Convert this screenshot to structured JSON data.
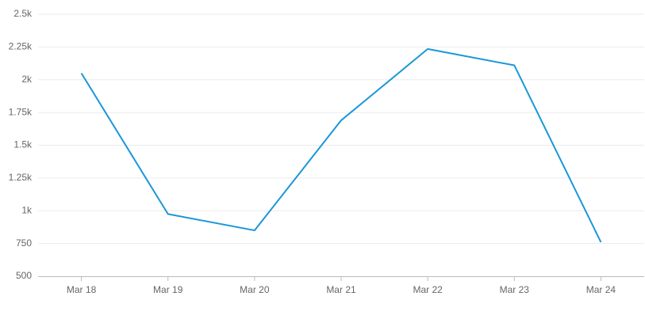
{
  "chart_data": {
    "type": "line",
    "categories": [
      "Mar 18",
      "Mar 19",
      "Mar 20",
      "Mar 21",
      "Mar 22",
      "Mar 23",
      "Mar 24"
    ],
    "series": [
      {
        "color": "#1b97d8",
        "values": [
          2050,
          975,
          850,
          1690,
          2235,
          2110,
          760
        ]
      }
    ],
    "ylim": [
      500,
      2500
    ],
    "yticks": [
      500,
      750,
      {
        "value": 1000,
        "label": "1k"
      },
      {
        "value": 1250,
        "label": "1.25k"
      },
      {
        "value": 1500,
        "label": "1.5k"
      },
      {
        "value": 1750,
        "label": "1.75k"
      },
      {
        "value": 2000,
        "label": "2k"
      },
      {
        "value": 2250,
        "label": "2.25k"
      },
      {
        "value": 2500,
        "label": "2.5k"
      }
    ],
    "grid": true
  }
}
